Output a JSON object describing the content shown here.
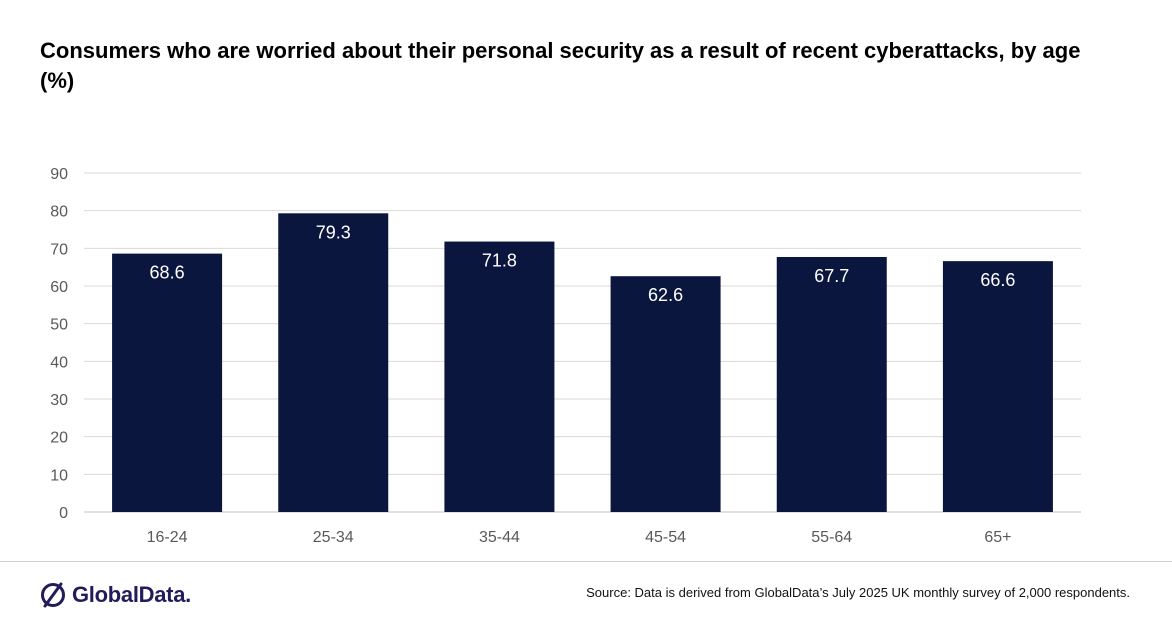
{
  "title": "Consumers who are worried about their personal security as a result of recent cyberattacks, by age (%)",
  "source": "Source: Data is derived from GlobalData’s July 2025 UK monthly survey of 2,000 respondents.",
  "logo": {
    "text": "GlobalData."
  },
  "colors": {
    "bar": "#0b163e",
    "grid": "#d9d9d9",
    "tick": "#595959",
    "label": "#ffffff",
    "logo": "#221c5a"
  },
  "chart_data": {
    "type": "bar",
    "title": "Consumers who are worried about their personal security as a result of recent cyberattacks, by age (%)",
    "categories": [
      "16-24",
      "25-34",
      "35-44",
      "45-54",
      "55-64",
      "65+"
    ],
    "values": [
      68.6,
      79.3,
      71.8,
      62.6,
      67.7,
      66.6
    ],
    "value_labels": [
      "68.6",
      "79.3",
      "71.8",
      "62.6",
      "67.7",
      "66.6"
    ],
    "yticks": [
      "0",
      "10",
      "20",
      "30",
      "40",
      "50",
      "60",
      "70",
      "80",
      "90"
    ],
    "ylim": [
      0,
      90
    ],
    "xlabel": "",
    "ylabel": "",
    "grid": true
  }
}
